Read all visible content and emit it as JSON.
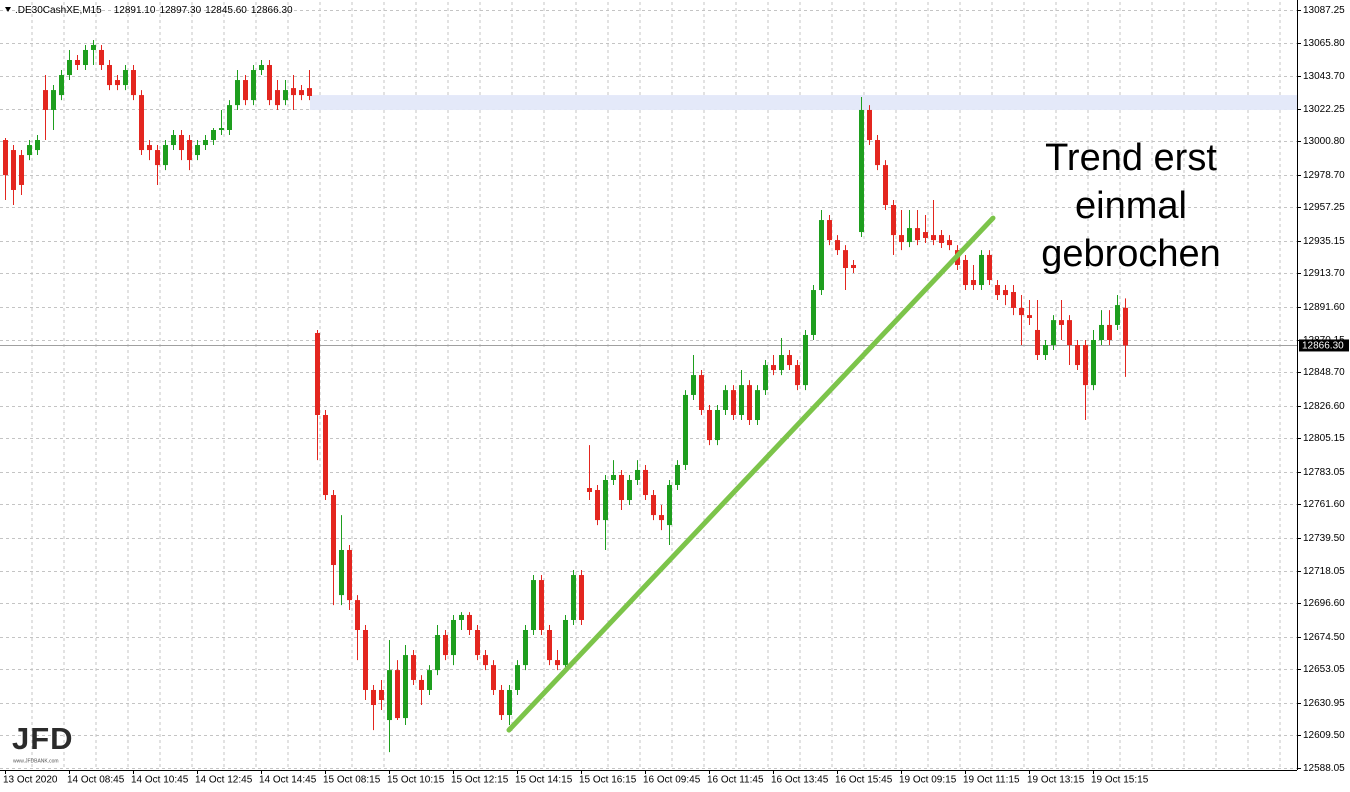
{
  "chart_data": {
    "type": "candlestick",
    "header": {
      "symbol": ".DE30CashXE,M15",
      "ohlc": [
        "12891.10",
        "12897.30",
        "12845.60",
        "12866.30"
      ]
    },
    "categories": [
      "13 Oct 2020",
      null,
      null,
      null,
      null,
      null,
      null,
      null,
      "14 Oct 08:45",
      null,
      null,
      null,
      null,
      null,
      null,
      null,
      "14 Oct 10:45",
      null,
      null,
      null,
      null,
      null,
      null,
      null,
      "14 Oct 12:45",
      null,
      null,
      null,
      null,
      null,
      null,
      null,
      "14 Oct 14:45",
      null,
      null,
      null,
      null,
      null,
      null,
      null,
      "15 Oct 08:15",
      null,
      null,
      null,
      null,
      null,
      null,
      null,
      "15 Oct 10:15",
      null,
      null,
      null,
      null,
      null,
      null,
      null,
      "15 Oct 12:15",
      null,
      null,
      null,
      null,
      null,
      null,
      null,
      "15 Oct 14:15",
      null,
      null,
      null,
      null,
      null,
      null,
      null,
      "15 Oct 16:15",
      null,
      null,
      null,
      null,
      null,
      null,
      null,
      "16 Oct 09:45",
      null,
      null,
      null,
      null,
      null,
      null,
      null,
      "16 Oct 11:45",
      null,
      null,
      null,
      null,
      null,
      null,
      null,
      "16 Oct 13:45",
      null,
      null,
      null,
      null,
      null,
      null,
      null,
      "16 Oct 15:45",
      null,
      null,
      null,
      null,
      null,
      null,
      null,
      "19 Oct 09:15",
      null,
      null,
      null,
      null,
      null,
      null,
      null,
      "19 Oct 11:15",
      null,
      null,
      null,
      null,
      null,
      null,
      null,
      "19 Oct 13:15",
      null,
      null,
      null,
      null,
      null,
      null,
      null,
      "19 Oct 15:15",
      null,
      null,
      null,
      null
    ],
    "open": [
      13001.6,
      12995,
      12991.7,
      12991.7,
      12995,
      13034.5,
      13021.4,
      13031.2,
      13044.4,
      13054.3,
      13051,
      13060.9,
      13060.9,
      13051,
      13041.1,
      13037.8,
      13047.7,
      13031.2,
      12998.3,
      12995,
      12985.1,
      12998.3,
      13004.9,
      13001.6,
      12991.7,
      12998.3,
      13001.6,
      13008.2,
      13008.2,
      13024.6,
      13041.1,
      13027.9,
      13047.7,
      13051,
      13034.5,
      13027.9,
      13035.8,
      13034.5,
      13035.8,
      12874.5,
      12820.5,
      12767.8,
      12701.9,
      12731.6,
      12698.6,
      12678.9,
      12639.4,
      12639.4,
      12619.6,
      12652.5,
      12620.9,
      12662.4,
      12646,
      12639.4,
      12652.5,
      12675.6,
      12662.4,
      12685.5,
      12688.8,
      12678.9,
      12662.4,
      12655.8,
      12639.4,
      12622.9,
      12639.4,
      12655.8,
      12678.9,
      12711.8,
      12678.9,
      12659.1,
      12655.8,
      12685.5,
      12715.1,
      12772.4,
      12771.1,
      12751.3,
      12777.7,
      12781,
      12764.5,
      12777.7,
      12784.3,
      12767.8,
      12754.6,
      12748,
      12774.4,
      12787.6,
      12833.7,
      12846.8,
      12823.8,
      12804,
      12823.8,
      12836.9,
      12820.5,
      12840.2,
      12817.2,
      12836.9,
      12853.4,
      12850.1,
      12860,
      12853.4,
      12840.2,
      12873.2,
      12902.8,
      12948.9,
      12935.7,
      12929.1,
      12919.3,
      12941,
      13021.4,
      13001.6,
      12985.1,
      12958.8,
      12939,
      12934.4,
      12943.6,
      12941,
      12939,
      12939,
      12935.7,
      12929.1,
      12922.6,
      12909.4,
      12906.1,
      12925.9,
      12906.1,
      12902.8,
      12901.5,
      12891,
      12886.3,
      12876.5,
      12860,
      12866.6,
      12883,
      12883,
      12866.6,
      12866.6,
      12840.2,
      12869.9,
      12879.8,
      12879.8,
      12891.1
    ],
    "high": [
      13002.9,
      12998.3,
      12995,
      13001.6,
      13004.9,
      13044.4,
      13037.8,
      13047.7,
      13060.9,
      13057.6,
      13064.2,
      13067.5,
      13064.2,
      13054.3,
      13044.4,
      13051,
      13051,
      13034.5,
      13001.6,
      12998.3,
      13001.6,
      13008.2,
      13008.2,
      13004.9,
      13001.6,
      13004.9,
      13009.5,
      13021.4,
      13027.9,
      13047.7,
      13044.4,
      13051,
      13054.3,
      13054.3,
      13041.1,
      13041.1,
      13044.4,
      13037.8,
      13047.7,
      12876.5,
      12823.8,
      12771.1,
      12754.6,
      12734.9,
      12701.9,
      12682.2,
      12642.7,
      12646,
      12672.3,
      12659.1,
      12669,
      12665.7,
      12649.2,
      12655.8,
      12682.2,
      12678.9,
      12688.8,
      12690.7,
      12690.7,
      12682.2,
      12665.7,
      12659.1,
      12642.7,
      12642.7,
      12659.1,
      12682.2,
      12715.1,
      12715.1,
      12682.2,
      12665.7,
      12688.8,
      12718.4,
      12718.4,
      12800.7,
      12774.4,
      12781,
      12790.8,
      12784.3,
      12781,
      12790.8,
      12787.6,
      12771.1,
      12761.2,
      12777.7,
      12790.8,
      12836.9,
      12860,
      12850.1,
      12827.1,
      12827.1,
      12840.2,
      12840.2,
      12850.1,
      12843.5,
      12840.2,
      12856.7,
      12860,
      12871.2,
      12863.3,
      12856.7,
      12876.5,
      12906.1,
      12955.5,
      12952.2,
      12939,
      12932.4,
      12922.6,
      13029.9,
      13024.6,
      13004.9,
      12988.4,
      12962.1,
      12955.5,
      12955.5,
      12955.5,
      12952.2,
      12962.1,
      12942.3,
      12939,
      12932.4,
      12925.9,
      12919.3,
      12929.1,
      12929.1,
      12909.4,
      12906.1,
      12906.1,
      12899.5,
      12896.2,
      12896.2,
      12869.9,
      12886.3,
      12896.2,
      12886.3,
      12869.9,
      12869.9,
      12876.5,
      12889.6,
      12889.6,
      12899.5,
      12897.3
    ],
    "low": [
      12962.1,
      12958.8,
      12965.4,
      12988.4,
      12991.7,
      13001.6,
      13008.2,
      13027.9,
      13041.1,
      13047.7,
      13047.7,
      13051,
      13047.7,
      13034.5,
      13034.5,
      13034.5,
      13027.9,
      12991.7,
      12988.4,
      12972,
      12981.8,
      12995,
      12988.4,
      12981.8,
      12988.4,
      12995,
      12998.3,
      13004.9,
      13004.9,
      13021.4,
      13024.6,
      13024.6,
      13044.4,
      13024.6,
      13021.4,
      13024.6,
      13021.4,
      13027.9,
      13027.9,
      12790.8,
      12764.5,
      12695.3,
      12695.3,
      12692.1,
      12659.1,
      12632.8,
      12613,
      12626.2,
      12598.5,
      12619.6,
      12616.3,
      12642.7,
      12629.5,
      12636.1,
      12649.2,
      12659.1,
      12655.8,
      12678.9,
      12675.6,
      12659.1,
      12652.5,
      12636.1,
      12619.6,
      12616.3,
      12636.1,
      12652.5,
      12675.6,
      12675.6,
      12655.8,
      12652.5,
      12652.5,
      12682.2,
      12682.2,
      12764.5,
      12748,
      12731.6,
      12774.4,
      12757.9,
      12761.2,
      12774.4,
      12764.5,
      12751.3,
      12744.7,
      12734.9,
      12771.1,
      12784.3,
      12830.4,
      12820.5,
      12800.7,
      12800.7,
      12820.5,
      12817.2,
      12817.2,
      12813.9,
      12813.9,
      12833.7,
      12846.8,
      12846.8,
      12850.1,
      12836.9,
      12836.9,
      12869.9,
      12899.5,
      12932.4,
      12925.9,
      12902.8,
      12914,
      12937.7,
      12998.3,
      12981.8,
      12955.5,
      12925.9,
      12929.1,
      12931.1,
      12932.4,
      12933.8,
      12932.4,
      12930.5,
      12929.1,
      12916,
      12902.8,
      12902.8,
      12902.8,
      12906.1,
      12896.2,
      12892.9,
      12886.3,
      12866.6,
      12879.8,
      12856.7,
      12856.7,
      12863.3,
      12869.9,
      12853.4,
      12850.1,
      12817.2,
      12836.9,
      12866.6,
      12866.6,
      12876.5,
      12845.6
    ],
    "close": [
      12978.5,
      12968.7,
      12972,
      12998.3,
      13001.6,
      13021.4,
      13034.5,
      13044.4,
      13054.3,
      13051,
      13060.9,
      13064.2,
      13051,
      13037.8,
      13037.8,
      13047.7,
      13031.2,
      12995,
      12995,
      12985.1,
      12998.3,
      13004.9,
      12995,
      12988.4,
      12998.3,
      13001.6,
      13008.2,
      13009.5,
      13024.6,
      13041.1,
      13027.9,
      13047.7,
      13051,
      13027.9,
      13024.6,
      13034.5,
      13031.2,
      13031.2,
      13030.6,
      12820.5,
      12767.8,
      12721.7,
      12731.6,
      12698.6,
      12678.9,
      12639.4,
      12629.5,
      12632.8,
      12652.5,
      12620.9,
      12662.4,
      12646,
      12639.4,
      12652.5,
      12675.6,
      12662.4,
      12685.5,
      12688.8,
      12678.9,
      12662.4,
      12655.8,
      12639.4,
      12622.9,
      12639.4,
      12655.8,
      12678.9,
      12711.8,
      12678.9,
      12659.1,
      12655.8,
      12685.5,
      12715.1,
      12685.5,
      12769.8,
      12751.3,
      12777.7,
      12781,
      12764.5,
      12777.7,
      12784.3,
      12767.8,
      12754.6,
      12751.3,
      12774.4,
      12787.6,
      12833.7,
      12846.8,
      12823.8,
      12804,
      12823.8,
      12836.9,
      12820.5,
      12840.2,
      12817.2,
      12836.9,
      12853.4,
      12850.1,
      12860,
      12853.4,
      12840.2,
      12873.2,
      12902.8,
      12948.9,
      12935.7,
      12929.1,
      12917.3,
      12917.3,
      13021.4,
      13001.6,
      12985.1,
      12958.8,
      12939,
      12934.4,
      12943.6,
      12935.7,
      12937.1,
      12935.7,
      12933.8,
      12932.4,
      12919.3,
      12906.1,
      12906.1,
      12925.9,
      12909.4,
      12899.5,
      12899.5,
      12891,
      12886.3,
      12884.4,
      12860,
      12866.6,
      12883,
      12879.8,
      12866.6,
      12853.4,
      12840.2,
      12869.9,
      12879.8,
      12869.9,
      12892.9,
      12866.3
    ],
    "up_color": "#1e9e1e",
    "down_color": "#e3261f",
    "ylim": [
      12586.7,
      13092.5
    ],
    "yticks": [
      13087.25,
      {
        "value": 13065.8,
        "label": "13065.80"
      },
      {
        "value": 13043.7,
        "label": "13043.70"
      },
      13022.25,
      {
        "value": 13000.8,
        "label": "13000.80"
      },
      {
        "value": 12978.7,
        "label": "12978.70"
      },
      12957.25,
      12935.15,
      {
        "value": 12913.7,
        "label": "12913.70"
      },
      {
        "value": 12891.6,
        "label": "12891.60"
      },
      12870.15,
      {
        "value": 12848.7,
        "label": "12848.70"
      },
      {
        "value": 12826.6,
        "label": "12826.60"
      },
      12805.15,
      12783.05,
      {
        "value": 12761.6,
        "label": "12761.60"
      },
      {
        "value": 12739.5,
        "label": "12739.50"
      },
      12718.05,
      {
        "value": 12696.6,
        "label": "12696.60"
      },
      {
        "value": 12674.5,
        "label": "12674.50"
      },
      12653.05,
      12630.95,
      {
        "value": 12609.5,
        "label": "12609.50"
      },
      12588.05
    ],
    "grid": true,
    "last_price": {
      "value": 12866.3,
      "label": "12866.30"
    },
    "band": {
      "y": [
        13021.4,
        13031.2
      ],
      "color": "#e4e9f9"
    },
    "trendline": {
      "x": [
        63,
        123.5
      ],
      "y": [
        12613,
        12950.2
      ],
      "color": "#7cc44a"
    },
    "annotation": [
      "Trend erst",
      "einmal",
      "gebrochen"
    ],
    "logo": {
      "text": "JFD",
      "url": "www.JFDBANK.com"
    }
  }
}
